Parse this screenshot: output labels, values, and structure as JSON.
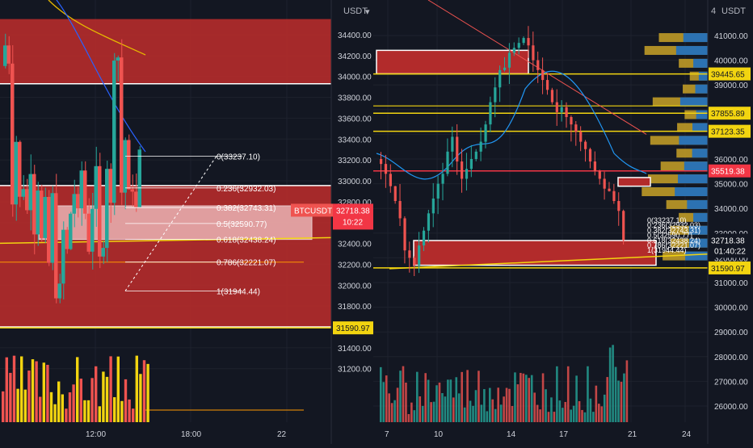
{
  "colors": {
    "bg": "#131722",
    "grid": "#1e222d",
    "zone": "#b22b2b",
    "zone_dark": "#8c1f1f",
    "up": "#26a69a",
    "down": "#ef5350",
    "yellow": "#f2d410",
    "orange": "#ff9800",
    "blue_ma": "#2962ff",
    "price_red": "#f23645",
    "text": "#d1d4dc"
  },
  "left_panel": {
    "currency": "USDT",
    "price_ticks": [
      "34400.00",
      "34200.00",
      "34000.00",
      "33800.00",
      "33600.00",
      "33400.00",
      "33200.00",
      "33000.00",
      "32800.00",
      "32600.00",
      "32400.00",
      "32200.00",
      "32000.00",
      "31800.00",
      "31400.00",
      "31200.00"
    ],
    "time_ticks": [
      "12:00",
      "18:00",
      "22"
    ],
    "fib_levels": [
      {
        "ratio": "0",
        "price": "33237.10",
        "label": "0(33237.10)"
      },
      {
        "ratio": "0.236",
        "price": "32932.03",
        "label": "0.236(32932.03)"
      },
      {
        "ratio": "0.382",
        "price": "32743.31",
        "label": "0.382(32743.31)"
      },
      {
        "ratio": "0.5",
        "price": "32590.77",
        "label": "0.5(32590.77)"
      },
      {
        "ratio": "0.618",
        "price": "32438.24",
        "label": "0.618(32438.24)"
      },
      {
        "ratio": "0.786",
        "price": "32221.07",
        "label": "0.786(32221.07)"
      },
      {
        "ratio": "1",
        "price": "31944.44",
        "label": "1(31944.44)"
      }
    ],
    "symbol_tag": {
      "symbol": "BTCUSDT",
      "price": "32718.38",
      "countdown": "10:22"
    },
    "level_tag": "31590.97"
  },
  "right_panel": {
    "currency": "USDT",
    "price_ticks": [
      "41000.00",
      "40000.00",
      "39000.00",
      "38000.00",
      "37000.00",
      "36000.00",
      "35000.00",
      "34000.00",
      "33000.00",
      "32000.00",
      "31000.00",
      "30000.00",
      "29000.00",
      "28000.00",
      "27000.00",
      "26000.00"
    ],
    "time_ticks": [
      "7",
      "10",
      "14",
      "17",
      "21",
      "24"
    ],
    "level_tags": [
      {
        "price": "39445.65",
        "kind": "yellow"
      },
      {
        "price": "37855.89",
        "kind": "yellow"
      },
      {
        "price": "37123.35",
        "kind": "yellow"
      },
      {
        "price": "35519.38",
        "kind": "red"
      },
      {
        "price": "32718.38",
        "kind": "current"
      },
      {
        "price": "31590.97",
        "kind": "yellow"
      }
    ],
    "countdown": "01:40:22",
    "mini_fib_labels": [
      "0(33237.10)",
      "0.236(32932.03)",
      "0.382(32743.31)",
      "0.5(32590.77)",
      "0.618(32438.24)",
      "0.786(32221.07)",
      "1(31944.44)"
    ]
  },
  "chart_data": [
    {
      "type": "candlestick",
      "timeframe": "intraday",
      "x_ticks": [
        "12:00",
        "18:00",
        "22"
      ],
      "ylim": [
        31100,
        34550
      ],
      "y_ticks": [
        34400,
        34200,
        34000,
        33800,
        33600,
        33400,
        33200,
        33000,
        32800,
        32600,
        32400,
        32200,
        32000,
        31800,
        31400,
        31200
      ],
      "supply_zones": [
        [
          33930,
          34550
        ],
        [
          31600,
          32955
        ]
      ],
      "fib_retracement": {
        "high": 33237.1,
        "low": 31944.44
      },
      "horizontal_levels": [
        31590.97,
        32221.07
      ],
      "current_price": 32718.38,
      "candles_close_approx": [
        34300,
        34200,
        32900,
        33400,
        32800,
        33000,
        32700,
        33200,
        32600,
        33000,
        32400,
        32700,
        32200,
        32800,
        32000,
        31900,
        32500,
        32300,
        32700,
        32900,
        32600,
        33100,
        32700,
        32400,
        32800,
        33000,
        32200,
        32500,
        33200,
        32718
      ]
    },
    {
      "type": "candlestick",
      "timeframe": "daily",
      "x_ticks": [
        "7",
        "10",
        "14",
        "17",
        "21",
        "24"
      ],
      "ylim": [
        25500,
        41800
      ],
      "y_ticks": [
        41000,
        40000,
        39000,
        38000,
        37000,
        36000,
        35000,
        34000,
        33000,
        32000,
        31000,
        30000,
        29000,
        28000,
        27000,
        26000
      ],
      "horizontal_levels": [
        39445.65,
        37855.89,
        37123.35,
        35519.38,
        31590.97
      ],
      "current_price": 32718.38,
      "volume_profile": true,
      "closes_approx": [
        35800,
        35400,
        34900,
        34300,
        33600,
        32300,
        32000,
        31700,
        32500,
        33100,
        33800,
        34400,
        35000,
        35400,
        36300,
        36900,
        35900,
        35200,
        35600,
        36000,
        36300,
        36700,
        37400,
        38300,
        38900,
        39600,
        39700,
        40300,
        40500,
        40700,
        40900,
        40600,
        40000,
        39600,
        39200,
        38800,
        38300,
        37900,
        38100,
        37700,
        37400,
        37100,
        36700,
        36400,
        35900,
        35500,
        35200,
        34800,
        34700,
        34300,
        33900,
        32718
      ]
    }
  ]
}
